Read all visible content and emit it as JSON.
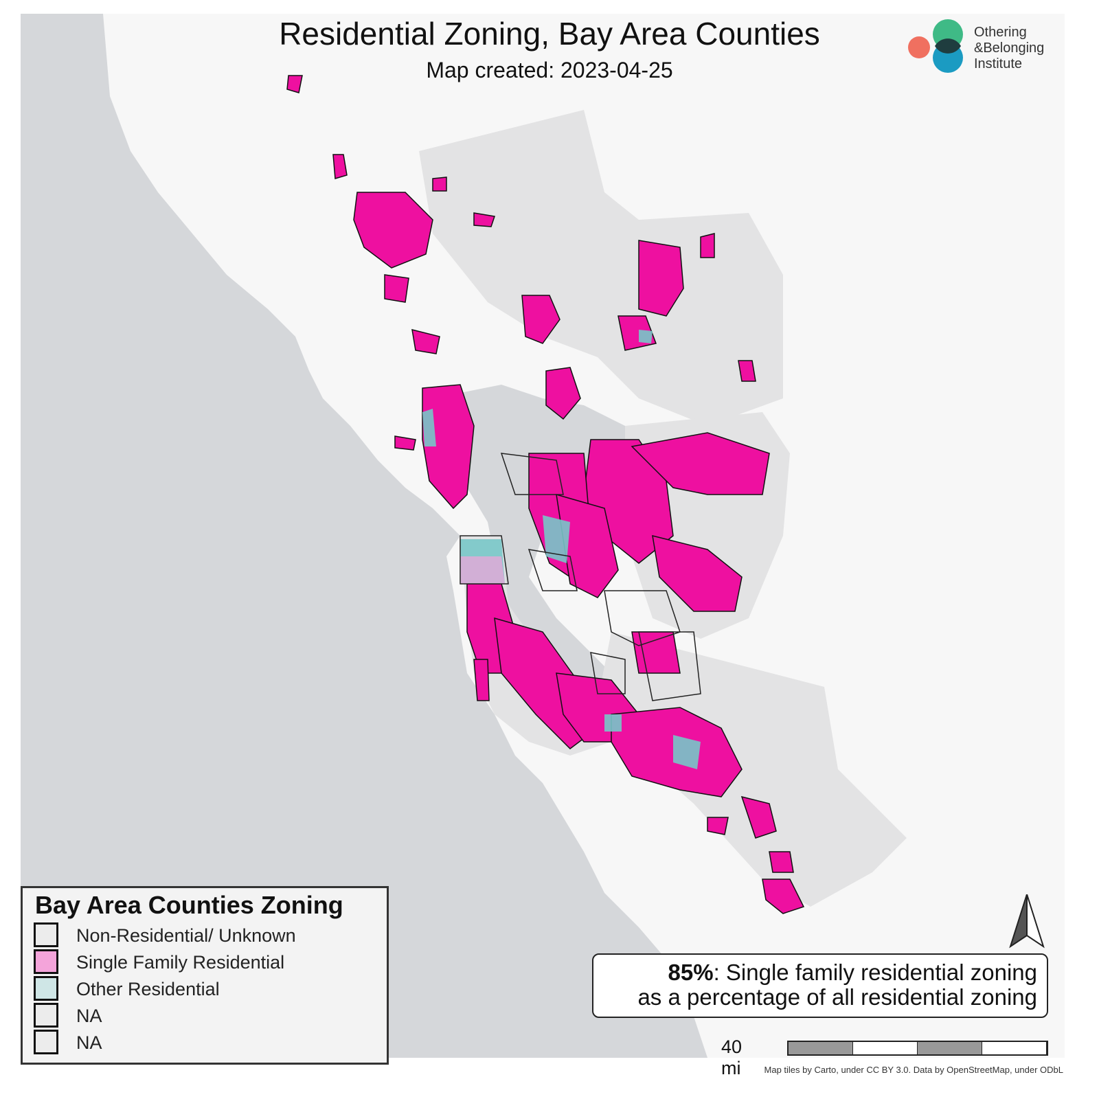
{
  "header": {
    "title": "Residential Zoning, Bay Area Counties",
    "subtitle": "Map created: 2023-04-25"
  },
  "logo": {
    "line1": "Othering",
    "line2": "&Belonging",
    "line3": "Institute",
    "colors": {
      "green": "#3fba86",
      "blue": "#1b9bc2",
      "red": "#f07060",
      "overlap": "#1f3d3f"
    }
  },
  "legend": {
    "title": "Bay Area Counties Zoning",
    "items": [
      {
        "label": "Non-Residential/ Unknown",
        "color": "#ececec"
      },
      {
        "label": "Single Family Residential",
        "color": "#f4a4da"
      },
      {
        "label": "Other Residential",
        "color": "#cfe6e6"
      },
      {
        "label": "NA",
        "color": "#ececec"
      },
      {
        "label": "NA",
        "color": "#ececec"
      }
    ]
  },
  "stat": {
    "percent": "85%",
    "line1_rest": ": Single family residential zoning",
    "line2": "as a percentage of all residential zoning"
  },
  "scale": {
    "label": "40 mi"
  },
  "attribution": "Map tiles by Carto, under CC BY 3.0. Data by OpenStreetMap, under ODbL",
  "map_colors": {
    "water": "#d5d7da",
    "land": "#f7f7f7",
    "county": "#e3e3e4",
    "single_family": "#ee10a0",
    "other_residential": "#78c6c8"
  }
}
